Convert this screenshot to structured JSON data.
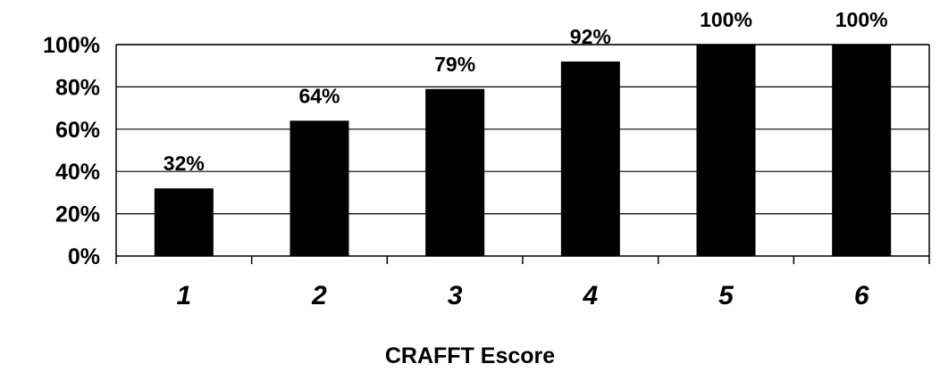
{
  "chart_data": {
    "type": "bar",
    "categories": [
      "1",
      "2",
      "3",
      "4",
      "5",
      "6"
    ],
    "values": [
      32,
      64,
      79,
      92,
      100,
      100
    ],
    "data_labels": [
      "32%",
      "64%",
      "79%",
      "92%",
      "100%",
      "100%"
    ],
    "y_ticks": [
      {
        "value": 0,
        "label": "0%"
      },
      {
        "value": 20,
        "label": "20%"
      },
      {
        "value": 40,
        "label": "40%"
      },
      {
        "value": 60,
        "label": "60%"
      },
      {
        "value": 80,
        "label": "80%"
      },
      {
        "value": 100,
        "label": "100%"
      }
    ],
    "title": "",
    "xlabel": "CRAFFT Escore",
    "ylabel": "",
    "ylim": [
      0,
      100
    ],
    "grid": true,
    "legend": "none",
    "colors": {
      "bar": "#000000",
      "grid": "#000000",
      "plot_border": "#000000",
      "background": "#ffffff"
    }
  }
}
